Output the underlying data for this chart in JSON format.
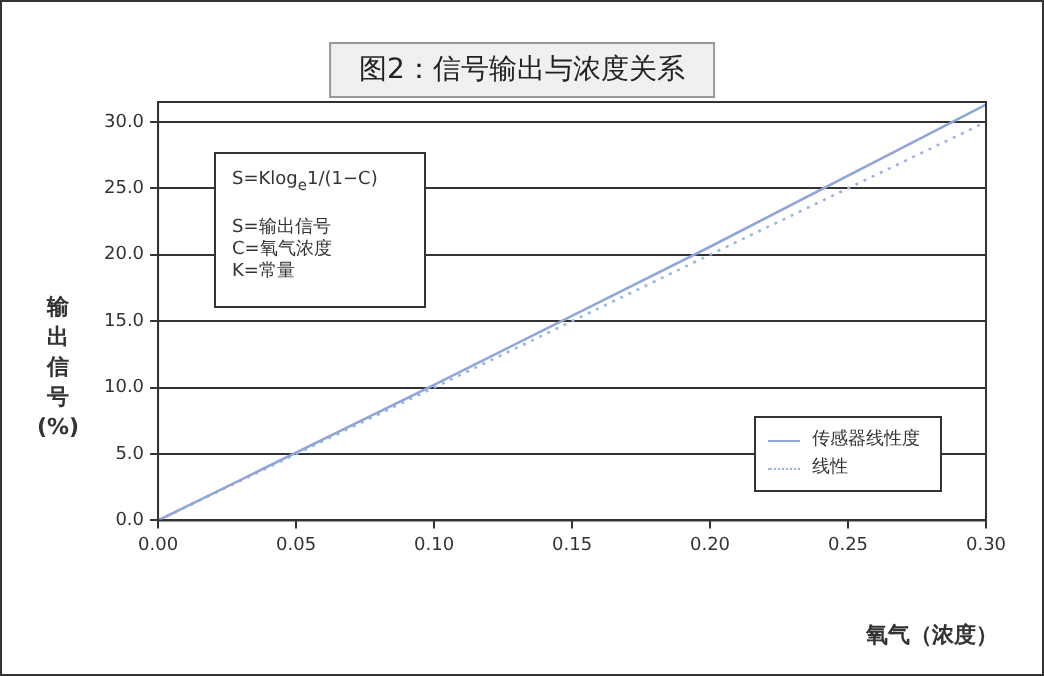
{
  "chart_data": {
    "type": "line",
    "title": "图2：信号输出与浓度关系",
    "xlabel": "氧气（浓度）",
    "ylabel": "输出信号(%)",
    "annotations": [
      "S=Klog$_{e}$1/(1−C)\n\nS=输出信号\nC=氧气浓度\nK=常量"
    ],
    "xlim": [
      0,
      0.3
    ],
    "xticks": [
      {
        "value": 0,
        "label": "0.00"
      },
      {
        "value": 0.05,
        "label": "0.05"
      },
      {
        "value": 0.1,
        "label": "0.10"
      },
      {
        "value": 0.15,
        "label": "0.15"
      },
      {
        "value": 0.2,
        "label": "0.20"
      },
      {
        "value": 0.25,
        "label": "0.25"
      },
      {
        "value": 0.3,
        "label": "0.30"
      }
    ],
    "ylim": [
      0,
      31.5
    ],
    "yticks": [
      {
        "value": 0,
        "label": "0.0"
      },
      {
        "value": 5,
        "label": "5.0"
      },
      {
        "value": 10,
        "label": "10.0"
      },
      {
        "value": 15,
        "label": "15.0"
      },
      {
        "value": 20,
        "label": "20.0"
      },
      {
        "value": 25,
        "label": "25.0"
      },
      {
        "value": 30,
        "label": "30.0"
      }
    ],
    "grid": "y",
    "legend": "bottom right",
    "marker": "none",
    "series": [
      {
        "name": "传感器线性度",
        "color": "#8ea6d8",
        "line_style": "solid",
        "x": [
          0,
          0.1,
          0.2,
          0.3
        ],
        "values": [
          0,
          10.2,
          20.6,
          31.3
        ]
      },
      {
        "name": "线性",
        "color": "#9db4e4",
        "line_style": "dotted",
        "x": [
          0,
          0.1,
          0.2,
          0.3
        ],
        "values": [
          0,
          10,
          20,
          30
        ]
      }
    ]
  }
}
